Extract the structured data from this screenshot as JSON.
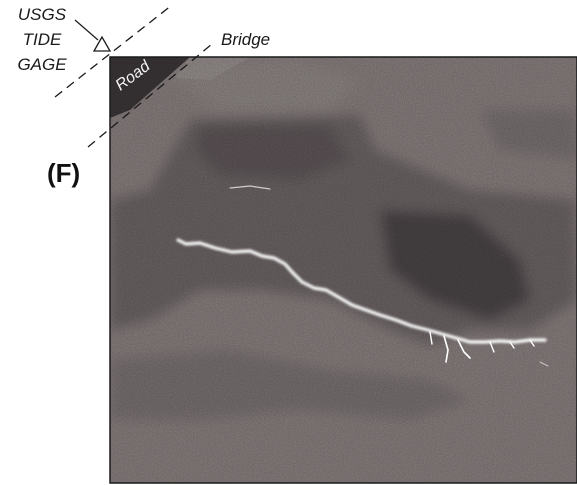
{
  "gage_label": {
    "line1": "USGS",
    "line2": "TIDE",
    "line3": "GAGE"
  },
  "bridge_label": "Bridge",
  "road_label": "Road",
  "panel_label": "(F)",
  "colors": {
    "terrain_light": "#8a8180",
    "terrain_mid": "#6d6566",
    "terrain_dark": "#4b4546",
    "channel": "#ffffff",
    "road": "#3c3738",
    "line": "#1a1a1a"
  },
  "icons": {
    "gage_marker": "triangle-icon"
  }
}
